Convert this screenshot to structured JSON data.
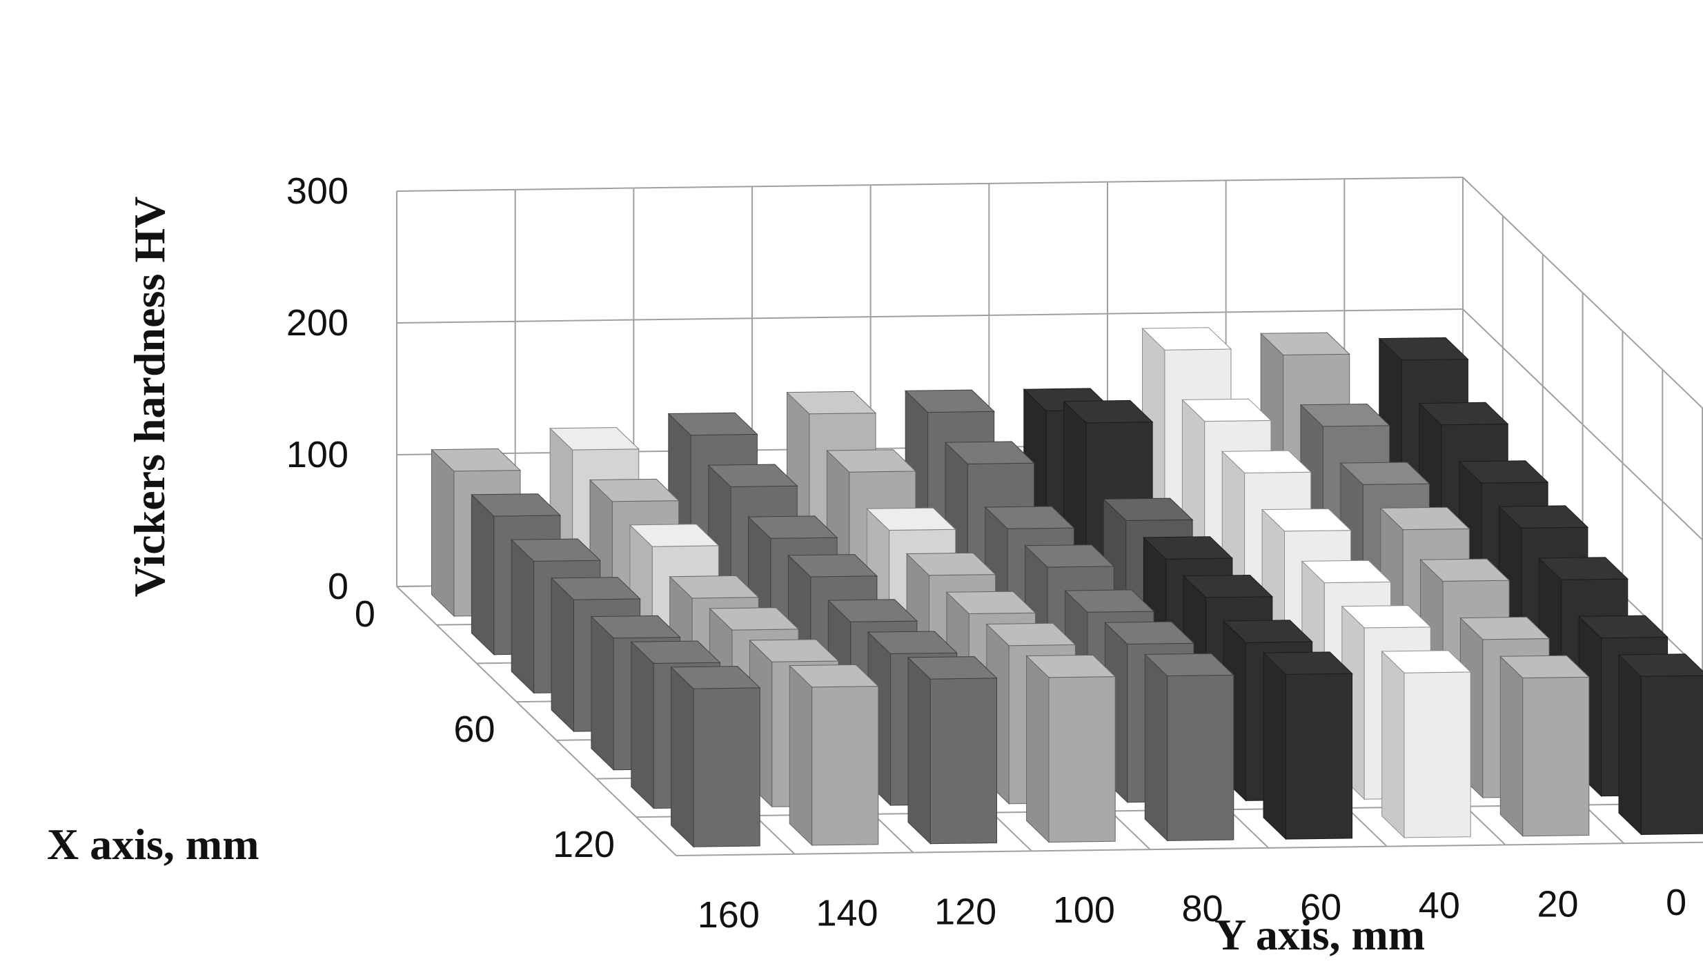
{
  "chart_data": {
    "type": "bar",
    "subtype": "3d-column",
    "zlabel": "Vickers hardness HV",
    "xlabel": "X axis, mm",
    "ylabel": "Y axis, mm",
    "zlim": [
      0,
      300
    ],
    "z_ticks": [
      "0",
      "100",
      "200",
      "300"
    ],
    "x_ticks": [
      "0",
      "60",
      "120"
    ],
    "y_ticks": [
      "160",
      "140",
      "120",
      "100",
      "80",
      "60",
      "40",
      "20",
      "0"
    ],
    "grid": true,
    "legend": "none",
    "x": [
      0,
      20,
      40,
      60,
      80,
      100,
      120
    ],
    "y": [
      160,
      140,
      120,
      100,
      80,
      60,
      40,
      20,
      0
    ],
    "values": [
      [
        110,
        125,
        135,
        150,
        150,
        150,
        195,
        190,
        185
      ],
      [
        105,
        115,
        125,
        135,
        140,
        170,
        170,
        165,
        165
      ],
      [
        100,
        110,
        115,
        120,
        120,
        125,
        160,
        150,
        150
      ],
      [
        100,
        100,
        115,
        115,
        120,
        125,
        145,
        145,
        145
      ],
      [
        100,
        105,
        110,
        115,
        115,
        125,
        135,
        135,
        135
      ],
      [
        110,
        110,
        115,
        120,
        120,
        120,
        130,
        120,
        120
      ],
      [
        120,
        120,
        125,
        125,
        125,
        125,
        125,
        120,
        120
      ]
    ],
    "row_colors": [
      [
        "#a9a9a9",
        "#d4d4d4",
        "#6c6c6c",
        "#b4b4b4",
        "#6c6c6c",
        "#2f2f2f",
        "#ececec",
        "#a9a9a9",
        "#2f2f2f"
      ],
      [
        "#6c6c6c",
        "#a9a9a9",
        "#6c6c6c",
        "#a9a9a9",
        "#6c6c6c",
        "#2f2f2f",
        "#ececec",
        "#7a7a7a",
        "#2f2f2f"
      ],
      [
        "#6c6c6c",
        "#d4d4d4",
        "#6c6c6c",
        "#d4d4d4",
        "#6c6c6c",
        "#5a5a5a",
        "#ececec",
        "#7a7a7a",
        "#2f2f2f"
      ],
      [
        "#6c6c6c",
        "#a9a9a9",
        "#6c6c6c",
        "#a9a9a9",
        "#6c6c6c",
        "#2f2f2f",
        "#ececec",
        "#a9a9a9",
        "#2f2f2f"
      ],
      [
        "#6c6c6c",
        "#a9a9a9",
        "#6c6c6c",
        "#a9a9a9",
        "#6c6c6c",
        "#2f2f2f",
        "#ececec",
        "#a9a9a9",
        "#2f2f2f"
      ],
      [
        "#6c6c6c",
        "#a9a9a9",
        "#6c6c6c",
        "#a9a9a9",
        "#6c6c6c",
        "#2f2f2f",
        "#ececec",
        "#a9a9a9",
        "#2f2f2f"
      ],
      [
        "#6c6c6c",
        "#a9a9a9",
        "#6c6c6c",
        "#a9a9a9",
        "#6c6c6c",
        "#2f2f2f",
        "#ececec",
        "#a9a9a9",
        "#2f2f2f"
      ]
    ]
  }
}
